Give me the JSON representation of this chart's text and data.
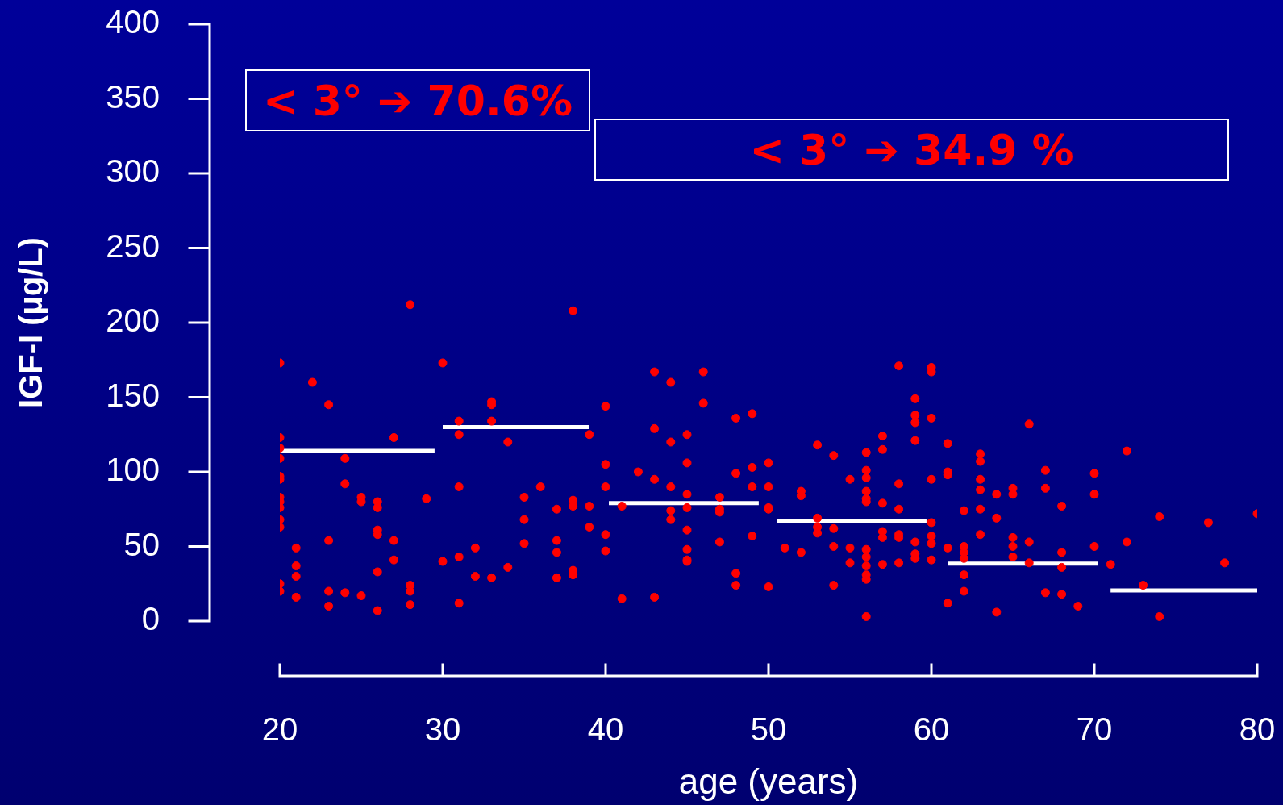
{
  "chart_data": {
    "type": "scatter",
    "xlabel": "age (years)",
    "ylabel": "IGF-I (µg/L)",
    "annotations": [
      "< 3° ➔ 70.6%",
      "< 3° ➔ 34.9 %"
    ],
    "xlim": [
      20,
      80
    ],
    "xticks": [
      20,
      30,
      40,
      50,
      60,
      70,
      80
    ],
    "ylim": [
      0,
      400
    ],
    "yticks": [
      0,
      50,
      100,
      150,
      200,
      250,
      300,
      350,
      400
    ],
    "grid": false,
    "legend": false,
    "marker": "circle",
    "series": [
      {
        "type": "scatter",
        "color": "#ff0000",
        "x": [
          20,
          20,
          20,
          20,
          20,
          20,
          20,
          20,
          20,
          20,
          20,
          20,
          20,
          21,
          21,
          21,
          21,
          22,
          23,
          23,
          23,
          23,
          24,
          24,
          24,
          25,
          25,
          25,
          26,
          26,
          26,
          26,
          26,
          26,
          27,
          27,
          27,
          28,
          28,
          28,
          28,
          29,
          30,
          30,
          31,
          31,
          31,
          31,
          31,
          32,
          32,
          33,
          33,
          33,
          33,
          34,
          34,
          35,
          35,
          35,
          36,
          37,
          37,
          37,
          37,
          38,
          38,
          38,
          38,
          38,
          39,
          39,
          39,
          40,
          40,
          40,
          40,
          40,
          41,
          41,
          42,
          43,
          43,
          43,
          43,
          44,
          44,
          44,
          44,
          44,
          45,
          45,
          45,
          45,
          45,
          45,
          45,
          45,
          46,
          46,
          47,
          47,
          47,
          47,
          48,
          48,
          48,
          48,
          49,
          49,
          49,
          49,
          50,
          50,
          50,
          50,
          50,
          51,
          52,
          52,
          52,
          53,
          53,
          53,
          53,
          54,
          54,
          54,
          54,
          55,
          55,
          55,
          56,
          56,
          56,
          56,
          56,
          56,
          56,
          56,
          56,
          56,
          56,
          56,
          57,
          57,
          57,
          57,
          57,
          57,
          58,
          58,
          58,
          58,
          58,
          58,
          59,
          59,
          59,
          59,
          59,
          59,
          59,
          60,
          60,
          60,
          60,
          60,
          60,
          60,
          60,
          61,
          61,
          61,
          61,
          61,
          62,
          62,
          62,
          62,
          62,
          62,
          63,
          63,
          63,
          63,
          63,
          63,
          64,
          64,
          64,
          65,
          65,
          65,
          65,
          65,
          66,
          66,
          66,
          67,
          67,
          67,
          68,
          68,
          68,
          68,
          69,
          70,
          70,
          70,
          71,
          72,
          72,
          73,
          74,
          74,
          77,
          78,
          80
        ],
        "values": [
          173,
          123,
          116,
          109,
          97,
          95,
          83,
          80,
          76,
          68,
          63,
          25,
          20,
          49,
          37,
          30,
          16,
          160,
          145,
          54,
          20,
          10,
          109,
          92,
          19,
          83,
          80,
          17,
          80,
          76,
          61,
          58,
          33,
          7,
          123,
          54,
          41,
          212,
          24,
          20,
          11,
          82,
          173,
          40,
          134,
          125,
          90,
          43,
          12,
          49,
          30,
          147,
          145,
          134,
          29,
          120,
          36,
          83,
          68,
          52,
          90,
          75,
          54,
          46,
          29,
          208,
          81,
          77,
          34,
          31,
          125,
          77,
          63,
          144,
          105,
          90,
          58,
          47,
          77,
          15,
          100,
          167,
          129,
          95,
          16,
          160,
          120,
          90,
          74,
          68,
          125,
          106,
          85,
          76,
          61,
          48,
          41,
          40,
          167,
          146,
          83,
          75,
          73,
          53,
          136,
          99,
          32,
          24,
          139,
          103,
          90,
          57,
          106,
          90,
          76,
          75,
          23,
          49,
          87,
          84,
          46,
          118,
          69,
          63,
          59,
          111,
          62,
          50,
          24,
          95,
          49,
          39,
          113,
          101,
          96,
          87,
          82,
          80,
          48,
          43,
          37,
          31,
          28,
          3,
          124,
          115,
          79,
          60,
          56,
          38,
          171,
          92,
          75,
          58,
          56,
          39,
          149,
          138,
          133,
          121,
          53,
          45,
          42,
          170,
          167,
          136,
          95,
          66,
          57,
          52,
          41,
          119,
          100,
          98,
          49,
          12,
          74,
          50,
          46,
          42,
          31,
          20,
          112,
          107,
          95,
          88,
          75,
          58,
          85,
          69,
          6,
          89,
          85,
          56,
          50,
          43,
          132,
          53,
          39,
          101,
          89,
          19,
          77,
          46,
          36,
          18,
          10,
          99,
          85,
          50,
          38,
          114,
          53,
          24,
          70,
          3,
          66,
          39,
          72
        ]
      },
      {
        "type": "line",
        "color": "#ffffff",
        "marker": "none",
        "x": [
          20,
          29.5
        ],
        "values": [
          114,
          114
        ]
      },
      {
        "type": "line",
        "color": "#ffffff",
        "marker": "none",
        "x": [
          30,
          39
        ],
        "values": [
          130,
          130
        ]
      },
      {
        "type": "line",
        "color": "#ffffff",
        "marker": "none",
        "x": [
          40.2,
          49.4
        ],
        "values": [
          79,
          79
        ]
      },
      {
        "type": "line",
        "color": "#ffffff",
        "marker": "none",
        "x": [
          50.5,
          59.7
        ],
        "values": [
          67,
          67
        ]
      },
      {
        "type": "line",
        "color": "#ffffff",
        "marker": "none",
        "x": [
          61,
          70.2
        ],
        "values": [
          38.5,
          38.5
        ]
      },
      {
        "type": "line",
        "color": "#ffffff",
        "marker": "none",
        "x": [
          71,
          80
        ],
        "values": [
          20.5,
          20.5
        ]
      }
    ]
  }
}
